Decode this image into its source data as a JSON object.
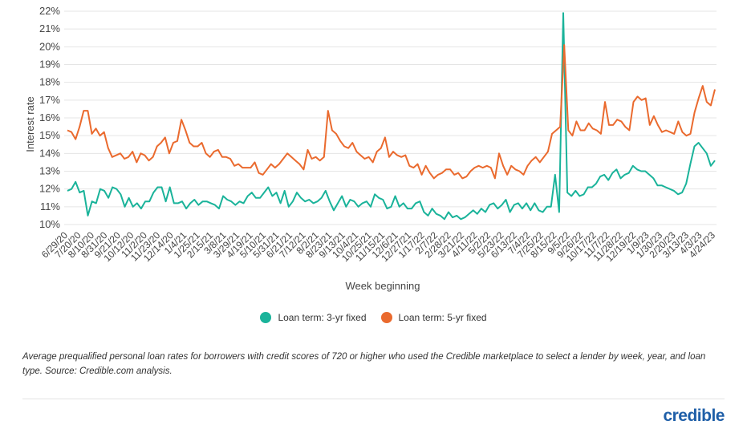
{
  "chart_data": {
    "type": "line",
    "title": "",
    "ylabel": "Interest rate",
    "xlabel": "Week beginning",
    "ylim": [
      10,
      22
    ],
    "yticks": [
      "10%",
      "11%",
      "12%",
      "13%",
      "14%",
      "15%",
      "16%",
      "17%",
      "18%",
      "19%",
      "20%",
      "21%",
      "22%"
    ],
    "grid": "horizontal",
    "legend_position": "bottom-center",
    "x_tick_labels": [
      "6/29/20",
      "7/20/20",
      "8/10/20",
      "8/31/20",
      "9/21/20",
      "10/12/20",
      "11/2/20",
      "11/23/20",
      "12/14/20",
      "1/4/21",
      "1/25/21",
      "2/15/21",
      "3/8/21",
      "3/29/21",
      "4/19/21",
      "5/10/21",
      "5/31/21",
      "6/21/21",
      "7/12/21",
      "8/2/21",
      "8/23/21",
      "9/13/21",
      "10/4/21",
      "10/25/21",
      "11/15/21",
      "12/6/21",
      "12/27/21",
      "1/17/22",
      "2/7/22",
      "2/28/22",
      "3/21/22",
      "4/11/22",
      "5/2/22",
      "5/23/22",
      "6/13/22",
      "7/4/22",
      "7/25/22",
      "8/15/22",
      "9/5/22",
      "9/26/22",
      "10/17/22",
      "11/7/22",
      "11/28/22",
      "12/19/22",
      "1/9/23",
      "1/30/23",
      "2/20/23",
      "3/13/23",
      "4/3/23",
      "4/24/23"
    ],
    "series": [
      {
        "name": "Loan term: 3-yr fixed",
        "color": "#1ab39a",
        "values": [
          11.9,
          12.0,
          12.4,
          11.8,
          11.9,
          10.5,
          11.3,
          11.2,
          12.0,
          11.9,
          11.5,
          12.1,
          12.0,
          11.7,
          11.0,
          11.5,
          11.0,
          11.2,
          10.9,
          11.3,
          11.3,
          11.8,
          12.1,
          12.1,
          11.3,
          12.1,
          11.2,
          11.2,
          11.3,
          10.9,
          11.2,
          11.4,
          11.1,
          11.3,
          11.3,
          11.2,
          11.1,
          10.9,
          11.6,
          11.4,
          11.3,
          11.1,
          11.3,
          11.2,
          11.6,
          11.8,
          11.5,
          11.5,
          11.8,
          12.1,
          11.6,
          11.8,
          11.2,
          11.9,
          11.0,
          11.3,
          11.8,
          11.5,
          11.3,
          11.4,
          11.2,
          11.3,
          11.5,
          11.9,
          11.3,
          10.8,
          11.2,
          11.6,
          11.0,
          11.4,
          11.3,
          11.0,
          11.2,
          11.3,
          11.0,
          11.7,
          11.5,
          11.4,
          10.9,
          11.0,
          11.6,
          11.0,
          11.2,
          10.9,
          10.9,
          11.2,
          11.3,
          10.7,
          10.5,
          10.9,
          10.6,
          10.5,
          10.3,
          10.7,
          10.4,
          10.5,
          10.3,
          10.4,
          10.6,
          10.8,
          10.6,
          10.9,
          10.7,
          11.1,
          11.2,
          10.9,
          11.1,
          11.4,
          10.7,
          11.1,
          11.2,
          10.9,
          11.2,
          10.8,
          11.2,
          10.8,
          10.7,
          11.0,
          11.0,
          12.8,
          10.7,
          21.9,
          11.8,
          11.6,
          11.9,
          11.6,
          11.7,
          12.1,
          12.1,
          12.3,
          12.7,
          12.8,
          12.5,
          12.9,
          13.1,
          12.6,
          12.8,
          12.9,
          13.3,
          13.1,
          13.0,
          13.0,
          12.8,
          12.6,
          12.2,
          12.2,
          12.1,
          12.0,
          11.9,
          11.7,
          11.8,
          12.3,
          13.4,
          14.4,
          14.6,
          14.3,
          14.0,
          13.3,
          13.6
        ]
      },
      {
        "name": "Loan term: 5-yr fixed",
        "color": "#ea6a2e",
        "values": [
          15.3,
          15.2,
          14.8,
          15.5,
          16.4,
          16.4,
          15.1,
          15.4,
          15.0,
          15.2,
          14.3,
          13.8,
          13.9,
          14.0,
          13.7,
          13.8,
          14.1,
          13.5,
          14.0,
          13.9,
          13.6,
          13.8,
          14.4,
          14.6,
          14.9,
          14.0,
          14.6,
          14.7,
          15.9,
          15.3,
          14.6,
          14.4,
          14.4,
          14.6,
          14.0,
          13.8,
          14.1,
          14.2,
          13.8,
          13.8,
          13.7,
          13.3,
          13.4,
          13.2,
          13.2,
          13.2,
          13.5,
          12.9,
          12.8,
          13.1,
          13.4,
          13.2,
          13.4,
          13.7,
          14.0,
          13.8,
          13.6,
          13.4,
          13.1,
          14.2,
          13.7,
          13.8,
          13.6,
          13.8,
          16.4,
          15.3,
          15.1,
          14.7,
          14.4,
          14.3,
          14.6,
          14.1,
          13.9,
          13.7,
          13.8,
          13.5,
          14.1,
          14.3,
          14.9,
          13.8,
          14.1,
          13.9,
          13.8,
          13.9,
          13.3,
          13.2,
          13.4,
          12.8,
          13.3,
          12.9,
          12.6,
          12.8,
          12.9,
          13.1,
          13.1,
          12.8,
          12.9,
          12.6,
          12.7,
          13.0,
          13.2,
          13.3,
          13.2,
          13.3,
          13.2,
          12.6,
          14.0,
          13.3,
          12.8,
          13.3,
          13.1,
          13.0,
          12.8,
          13.3,
          13.6,
          13.8,
          13.5,
          13.8,
          14.1,
          15.1,
          15.3,
          15.5,
          20.1,
          15.3,
          15.0,
          15.8,
          15.3,
          15.3,
          15.7,
          15.4,
          15.3,
          15.1,
          16.9,
          15.6,
          15.6,
          15.9,
          15.8,
          15.5,
          15.3,
          16.9,
          17.2,
          17.0,
          17.1,
          15.6,
          16.1,
          15.6,
          15.2,
          15.3,
          15.2,
          15.1,
          15.8,
          15.2,
          15.0,
          15.1,
          16.3,
          17.1,
          17.8,
          16.9,
          16.7,
          17.6
        ]
      }
    ]
  },
  "legend": {
    "item_1_label": "Loan term: 3-yr fixed",
    "item_2_label": "Loan term: 5-yr fixed"
  },
  "caption": "Average prequalified personal loan rates for borrowers with credit scores of 720 or higher who used the Credible marketplace to select a lender by week, year, and loan type. Source: Credible.com analysis.",
  "brand": "credible"
}
